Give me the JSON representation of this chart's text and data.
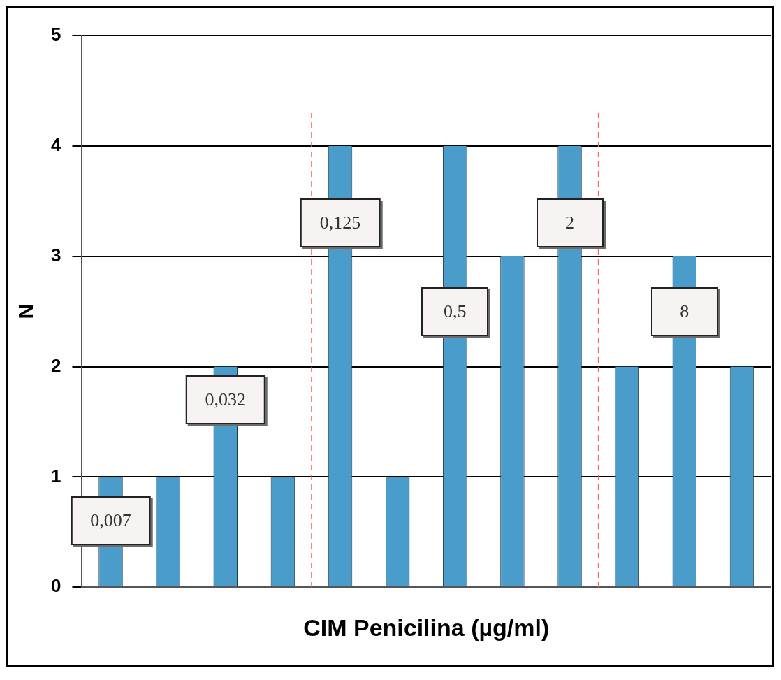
{
  "chart_data": {
    "type": "bar",
    "xlabel": "CIM Penicilina (µg/ml)",
    "ylabel": "N",
    "categories": [
      "0,007",
      null,
      "0,032",
      null,
      "0,125",
      null,
      "0,5",
      null,
      "2",
      null,
      "8",
      null
    ],
    "values": [
      1,
      1,
      2,
      1,
      4,
      1,
      4,
      3,
      4,
      2,
      3,
      2
    ],
    "color": "#4a9ccb",
    "ylim": [
      0,
      5
    ],
    "yticks": [
      0,
      1,
      2,
      3,
      4,
      5
    ],
    "grid": "y",
    "legend": false
  }
}
